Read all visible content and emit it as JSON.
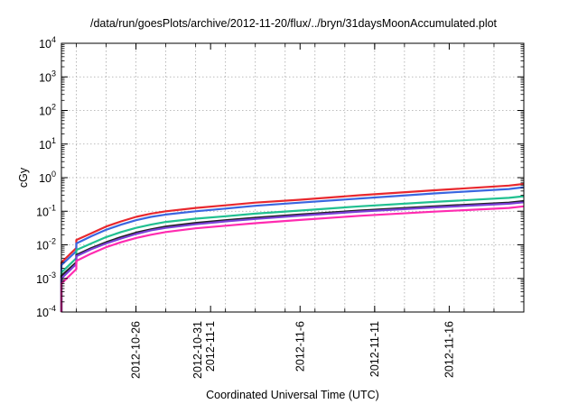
{
  "chart_data": {
    "type": "line",
    "title": "/data/run/goesPlots/archive/2012-11-20/flux/../bryn/31daysMoonAccumulated.plot",
    "xlabel": "Coordinated Universal Time (UTC)",
    "ylabel": "cGy",
    "y_scale": "log",
    "ylim": [
      0.0001,
      10000
    ],
    "y_ticks": [
      {
        "value": 0.0001,
        "base": "10",
        "exp": "-4"
      },
      {
        "value": 0.001,
        "base": "10",
        "exp": "-3"
      },
      {
        "value": 0.01,
        "base": "10",
        "exp": "-2"
      },
      {
        "value": 0.1,
        "base": "10",
        "exp": "-1"
      },
      {
        "value": 1,
        "base": "10",
        "exp": "0"
      },
      {
        "value": 10,
        "base": "10",
        "exp": "1"
      },
      {
        "value": 100,
        "base": "10",
        "exp": "2"
      },
      {
        "value": 1000,
        "base": "10",
        "exp": "3"
      },
      {
        "value": 10000,
        "base": "10",
        "exp": "4"
      }
    ],
    "xlim": [
      "2012-10-21",
      "2012-11-21"
    ],
    "x_ticks": [
      {
        "date": "2012-10-26",
        "labels": [
          "2012-10-26"
        ]
      },
      {
        "date": "2012-10-31",
        "labels": [
          "2012-10-31",
          "2012-11-1"
        ]
      },
      {
        "date": "2012-11-06",
        "labels": [
          "2012-11-6"
        ]
      },
      {
        "date": "2012-11-11",
        "labels": [
          "2012-11-11"
        ]
      },
      {
        "date": "2012-11-16",
        "labels": [
          "2012-11-16"
        ]
      }
    ],
    "x_gridlines": [
      "2012-10-22",
      "2012-10-24",
      "2012-10-26",
      "2012-10-28",
      "2012-10-30",
      "2012-11-01",
      "2012-11-03",
      "2012-11-05",
      "2012-11-07",
      "2012-11-09",
      "2012-11-11",
      "2012-11-13",
      "2012-11-15",
      "2012-11-17",
      "2012-11-19"
    ],
    "grid": true,
    "legend": "none",
    "series": [
      {
        "color": "#e8282e",
        "points": [
          [
            "2012-10-21",
            0.0001
          ],
          [
            "2012-10-21",
            0.003
          ],
          [
            "2012-10-22",
            0.008
          ],
          [
            "2012-10-22",
            0.014
          ],
          [
            "2012-10-23",
            0.022
          ],
          [
            "2012-10-24",
            0.035
          ],
          [
            "2012-10-25",
            0.05
          ],
          [
            "2012-10-26",
            0.068
          ],
          [
            "2012-10-27",
            0.085
          ],
          [
            "2012-10-28",
            0.1
          ],
          [
            "2012-10-30",
            0.125
          ],
          [
            "2012-11-01",
            0.15
          ],
          [
            "2012-11-03",
            0.18
          ],
          [
            "2012-11-06",
            0.22
          ],
          [
            "2012-11-10",
            0.3
          ],
          [
            "2012-11-15",
            0.42
          ],
          [
            "2012-11-20",
            0.58
          ],
          [
            "2012-11-21",
            0.65
          ]
        ]
      },
      {
        "color": "#3a66e0",
        "points": [
          [
            "2012-10-21",
            0.0001
          ],
          [
            "2012-10-21",
            0.0025
          ],
          [
            "2012-10-22",
            0.0065
          ],
          [
            "2012-10-22",
            0.011
          ],
          [
            "2012-10-23",
            0.018
          ],
          [
            "2012-10-24",
            0.028
          ],
          [
            "2012-10-25",
            0.04
          ],
          [
            "2012-10-26",
            0.054
          ],
          [
            "2012-10-27",
            0.068
          ],
          [
            "2012-10-28",
            0.08
          ],
          [
            "2012-10-30",
            0.1
          ],
          [
            "2012-11-01",
            0.12
          ],
          [
            "2012-11-03",
            0.145
          ],
          [
            "2012-11-06",
            0.18
          ],
          [
            "2012-11-10",
            0.24
          ],
          [
            "2012-11-15",
            0.34
          ],
          [
            "2012-11-20",
            0.46
          ],
          [
            "2012-11-21",
            0.52
          ]
        ]
      },
      {
        "color": "#20c090",
        "points": [
          [
            "2012-10-21",
            0.0001
          ],
          [
            "2012-10-21",
            0.0015
          ],
          [
            "2012-10-22",
            0.004
          ],
          [
            "2012-10-22",
            0.007
          ],
          [
            "2012-10-23",
            0.011
          ],
          [
            "2012-10-24",
            0.017
          ],
          [
            "2012-10-25",
            0.024
          ],
          [
            "2012-10-26",
            0.032
          ],
          [
            "2012-10-27",
            0.04
          ],
          [
            "2012-10-28",
            0.048
          ],
          [
            "2012-10-30",
            0.06
          ],
          [
            "2012-11-01",
            0.071
          ],
          [
            "2012-11-03",
            0.085
          ],
          [
            "2012-11-06",
            0.105
          ],
          [
            "2012-11-10",
            0.14
          ],
          [
            "2012-11-15",
            0.19
          ],
          [
            "2012-11-20",
            0.25
          ],
          [
            "2012-11-21",
            0.28
          ]
        ]
      },
      {
        "color": "#202020",
        "points": [
          [
            "2012-10-21",
            0.0001
          ],
          [
            "2012-10-21",
            0.0012
          ],
          [
            "2012-10-22",
            0.003
          ],
          [
            "2012-10-22",
            0.005
          ],
          [
            "2012-10-23",
            0.008
          ],
          [
            "2012-10-24",
            0.012
          ],
          [
            "2012-10-25",
            0.017
          ],
          [
            "2012-10-26",
            0.023
          ],
          [
            "2012-10-27",
            0.029
          ],
          [
            "2012-10-28",
            0.035
          ],
          [
            "2012-10-30",
            0.045
          ],
          [
            "2012-11-01",
            0.054
          ],
          [
            "2012-11-03",
            0.064
          ],
          [
            "2012-11-06",
            0.08
          ],
          [
            "2012-11-10",
            0.105
          ],
          [
            "2012-11-15",
            0.14
          ],
          [
            "2012-11-20",
            0.18
          ],
          [
            "2012-11-21",
            0.2
          ]
        ]
      },
      {
        "color": "#7a40d8",
        "points": [
          [
            "2012-10-21",
            0.0001
          ],
          [
            "2012-10-21",
            0.001
          ],
          [
            "2012-10-22",
            0.0027
          ],
          [
            "2012-10-22",
            0.0046
          ],
          [
            "2012-10-23",
            0.0074
          ],
          [
            "2012-10-24",
            0.011
          ],
          [
            "2012-10-25",
            0.0155
          ],
          [
            "2012-10-26",
            0.021
          ],
          [
            "2012-10-27",
            0.027
          ],
          [
            "2012-10-28",
            0.032
          ],
          [
            "2012-10-30",
            0.041
          ],
          [
            "2012-11-01",
            0.05
          ],
          [
            "2012-11-03",
            0.059
          ],
          [
            "2012-11-06",
            0.074
          ],
          [
            "2012-11-10",
            0.098
          ],
          [
            "2012-11-15",
            0.13
          ],
          [
            "2012-11-20",
            0.168
          ],
          [
            "2012-11-21",
            0.185
          ]
        ]
      },
      {
        "color": "#ff2bb0",
        "points": [
          [
            "2012-10-21",
            0.0001
          ],
          [
            "2012-10-21",
            0.0007
          ],
          [
            "2012-10-22",
            0.0019
          ],
          [
            "2012-10-22",
            0.0033
          ],
          [
            "2012-10-23",
            0.0055
          ],
          [
            "2012-10-24",
            0.0085
          ],
          [
            "2012-10-25",
            0.012
          ],
          [
            "2012-10-26",
            0.016
          ],
          [
            "2012-10-27",
            0.02
          ],
          [
            "2012-10-28",
            0.024
          ],
          [
            "2012-10-30",
            0.031
          ],
          [
            "2012-11-01",
            0.037
          ],
          [
            "2012-11-03",
            0.044
          ],
          [
            "2012-11-06",
            0.055
          ],
          [
            "2012-11-10",
            0.073
          ],
          [
            "2012-11-15",
            0.097
          ],
          [
            "2012-11-20",
            0.125
          ],
          [
            "2012-11-21",
            0.14
          ]
        ]
      }
    ]
  }
}
